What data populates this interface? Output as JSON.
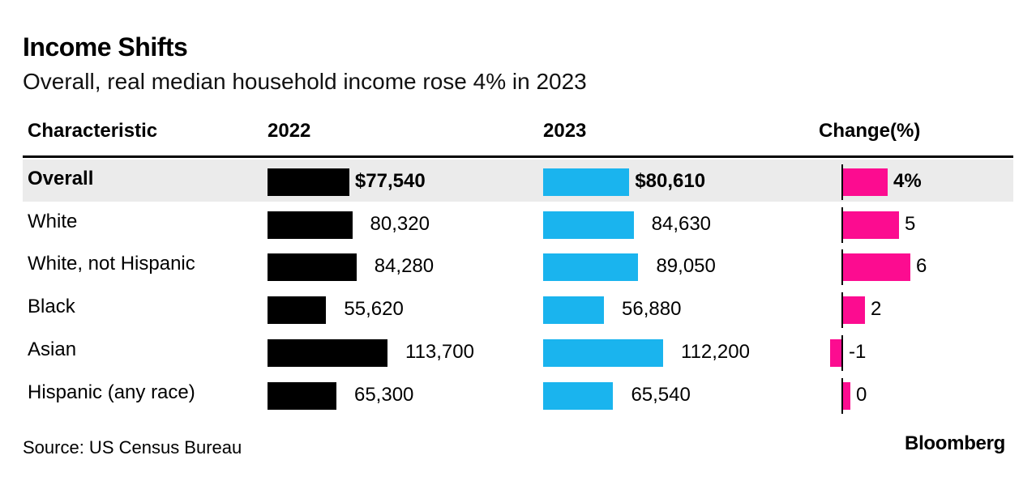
{
  "title": "Income Shifts",
  "subtitle": "Overall, real median household income rose 4% in 2023",
  "source": "Source: US Census Bureau",
  "brand": "Bloomberg",
  "colors": {
    "y2022": "#000000",
    "y2023": "#1ab4ee",
    "change": "#fc0c90",
    "highlight": "#ebebeb"
  },
  "chart_data": {
    "type": "table",
    "columns": [
      "Characteristic",
      "2022",
      "2023",
      "Change(%)"
    ],
    "rows": [
      {
        "label": "Overall",
        "v2022": 77540,
        "v2023": 80610,
        "change": 4,
        "label2022": "$77,540",
        "label2023": "$80,610",
        "labelChange": "4%",
        "highlight": true
      },
      {
        "label": "White",
        "v2022": 80320,
        "v2023": 84630,
        "change": 5,
        "label2022": "80,320",
        "label2023": "84,630",
        "labelChange": "5",
        "highlight": false
      },
      {
        "label": "White, not Hispanic",
        "v2022": 84280,
        "v2023": 89050,
        "change": 6,
        "label2022": "84,280",
        "label2023": "89,050",
        "labelChange": "6",
        "highlight": false
      },
      {
        "label": "Black",
        "v2022": 55620,
        "v2023": 56880,
        "change": 2,
        "label2022": "55,620",
        "label2023": "56,880",
        "labelChange": "2",
        "highlight": false
      },
      {
        "label": "Asian",
        "v2022": 113700,
        "v2023": 112200,
        "change": -1,
        "label2022": "113,700",
        "label2023": "112,200",
        "labelChange": "-1",
        "highlight": false
      },
      {
        "label": "Hispanic (any race)",
        "v2022": 65300,
        "v2023": 65540,
        "change": 0,
        "label2022": "65,300",
        "label2023": "65,540",
        "labelChange": "0",
        "highlight": false
      }
    ]
  }
}
